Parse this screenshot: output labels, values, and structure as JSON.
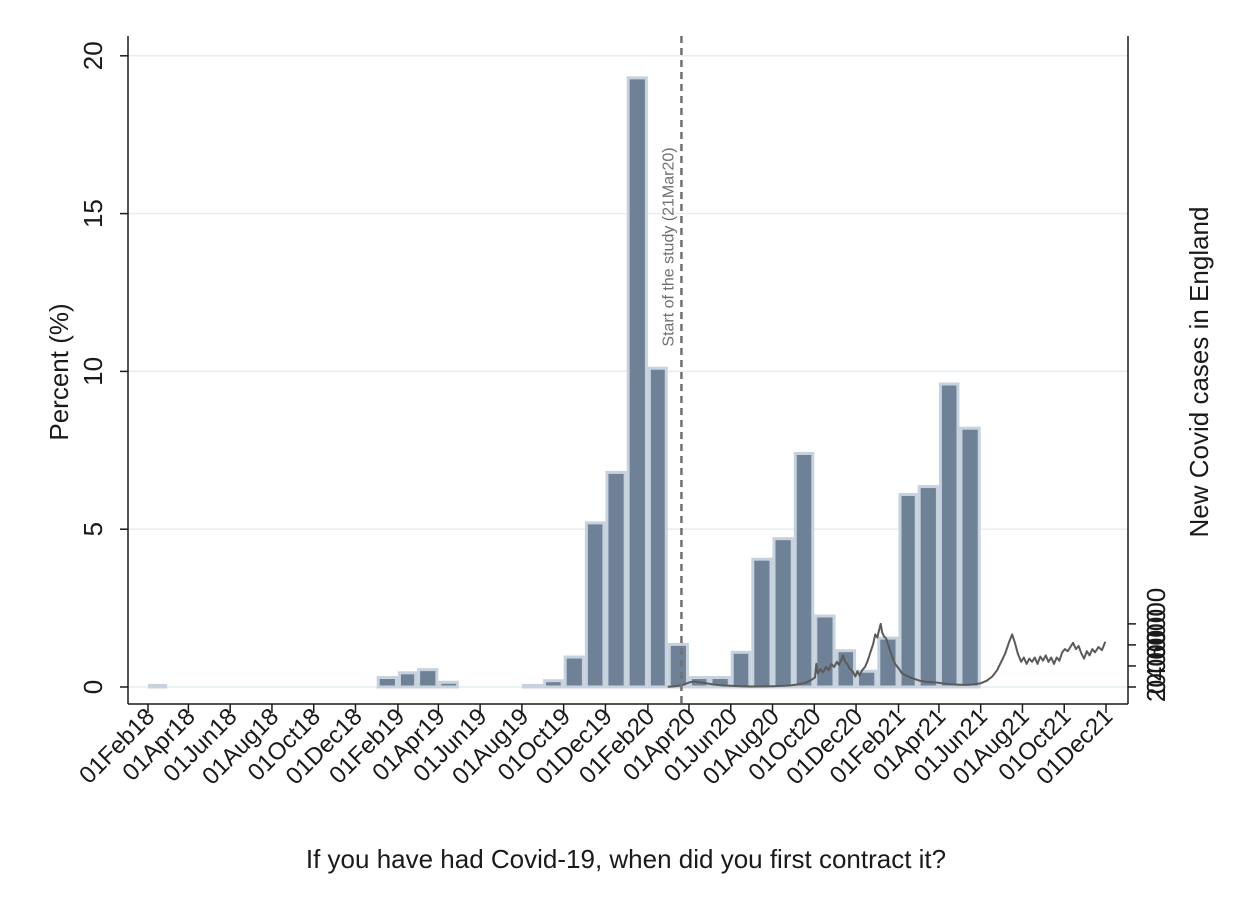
{
  "chart_data": {
    "type": "bar",
    "xlabel": "If you have had Covid-19, when did you first contract it?",
    "ylabel": "Percent (%)",
    "y2label": "New Covid cases in England",
    "ylim": [
      0,
      20.5
    ],
    "y2lim": [
      0,
      61500
    ],
    "yticks": [
      "0",
      "5",
      "10",
      "15",
      "20"
    ],
    "y2ticks": [
      "0",
      "20000",
      "40000",
      "60000"
    ],
    "xtick_labels": [
      "01Feb18",
      "01Apr18",
      "01Jun18",
      "01Aug18",
      "01Oct18",
      "01Dec18",
      "01Feb19",
      "01Apr19",
      "01Jun19",
      "01Aug19",
      "01Oct19",
      "01Dec19",
      "01Feb20",
      "01Apr20",
      "01Jun20",
      "01Aug20",
      "01Oct20",
      "01Dec20",
      "01Feb21",
      "01Apr21",
      "01Jun21",
      "01Aug21",
      "01Oct21",
      "01Dec21"
    ],
    "grid": true,
    "bars": {
      "months": [
        "2018-02",
        "2018-03",
        "2018-04",
        "2018-05",
        "2018-06",
        "2018-07",
        "2018-08",
        "2018-09",
        "2018-10",
        "2018-11",
        "2018-12",
        "2019-01",
        "2019-02",
        "2019-03",
        "2019-04",
        "2019-05",
        "2019-06",
        "2019-07",
        "2019-08",
        "2019-09",
        "2019-10",
        "2019-11",
        "2019-12",
        "2020-01",
        "2020-02",
        "2020-03",
        "2020-04",
        "2020-05",
        "2020-06",
        "2020-07",
        "2020-08",
        "2020-09",
        "2020-10",
        "2020-11",
        "2020-12",
        "2021-01",
        "2021-02",
        "2021-03",
        "2021-04",
        "2021-05",
        "2021-06",
        "2021-07",
        "2021-08",
        "2021-09",
        "2021-10",
        "2021-11"
      ],
      "values": [
        0.05,
        0,
        0,
        0,
        0,
        0,
        0,
        0,
        0,
        0,
        0,
        0.3,
        0.45,
        0.55,
        0.15,
        0,
        0,
        0,
        0.05,
        0.2,
        0.95,
        5.2,
        6.8,
        19.3,
        10.1,
        1.35,
        0.3,
        0.3,
        1.1,
        4.05,
        4.7,
        7.4,
        2.25,
        1.15,
        0.5,
        1.55,
        6.1,
        6.35,
        9.6,
        8.2,
        0,
        0,
        0,
        0,
        0,
        0
      ]
    },
    "series": [
      {
        "type": "line",
        "axis": "right",
        "points": [
          [
            "2020-03-01",
            200
          ],
          [
            "2020-03-10",
            600
          ],
          [
            "2020-03-21",
            1500
          ],
          [
            "2020-03-27",
            3000
          ],
          [
            "2020-04-02",
            4500
          ],
          [
            "2020-04-08",
            5200
          ],
          [
            "2020-04-14",
            4800
          ],
          [
            "2020-04-20",
            4200
          ],
          [
            "2020-04-26",
            3600
          ],
          [
            "2020-05-03",
            2800
          ],
          [
            "2020-05-12",
            2000
          ],
          [
            "2020-05-22",
            1400
          ],
          [
            "2020-06-01",
            1100
          ],
          [
            "2020-06-15",
            800
          ],
          [
            "2020-07-01",
            500
          ],
          [
            "2020-07-15",
            600
          ],
          [
            "2020-08-01",
            800
          ],
          [
            "2020-08-15",
            1000
          ],
          [
            "2020-08-28",
            1500
          ],
          [
            "2020-09-08",
            2500
          ],
          [
            "2020-09-18",
            4000
          ],
          [
            "2020-09-26",
            6500
          ],
          [
            "2020-10-02",
            9000
          ],
          [
            "2020-10-04",
            22000
          ],
          [
            "2020-10-06",
            13000
          ],
          [
            "2020-10-10",
            17000
          ],
          [
            "2020-10-14",
            14000
          ],
          [
            "2020-10-18",
            19000
          ],
          [
            "2020-10-22",
            16000
          ],
          [
            "2020-10-26",
            22000
          ],
          [
            "2020-10-30",
            19000
          ],
          [
            "2020-11-03",
            24000
          ],
          [
            "2020-11-06",
            21000
          ],
          [
            "2020-11-09",
            25000
          ],
          [
            "2020-11-12",
            30000
          ],
          [
            "2020-11-15",
            24000
          ],
          [
            "2020-11-18",
            22000
          ],
          [
            "2020-11-22",
            17000
          ],
          [
            "2020-11-26",
            15000
          ],
          [
            "2020-11-30",
            10000
          ],
          [
            "2020-12-03",
            15000
          ],
          [
            "2020-12-06",
            11000
          ],
          [
            "2020-12-10",
            16000
          ],
          [
            "2020-12-14",
            19000
          ],
          [
            "2020-12-18",
            25000
          ],
          [
            "2020-12-22",
            33000
          ],
          [
            "2020-12-26",
            41000
          ],
          [
            "2020-12-29",
            50000
          ],
          [
            "2021-01-01",
            47000
          ],
          [
            "2021-01-04",
            55000
          ],
          [
            "2021-01-06",
            60000
          ],
          [
            "2021-01-08",
            52000
          ],
          [
            "2021-01-11",
            48000
          ],
          [
            "2021-01-14",
            46000
          ],
          [
            "2021-01-18",
            38000
          ],
          [
            "2021-01-22",
            30000
          ],
          [
            "2021-01-27",
            22000
          ],
          [
            "2021-02-01",
            18000
          ],
          [
            "2021-02-06",
            13000
          ],
          [
            "2021-02-12",
            11000
          ],
          [
            "2021-02-18",
            9000
          ],
          [
            "2021-02-25",
            7500
          ],
          [
            "2021-03-04",
            6000
          ],
          [
            "2021-03-12",
            5000
          ],
          [
            "2021-03-22",
            4500
          ],
          [
            "2021-04-01",
            4000
          ],
          [
            "2021-04-10",
            3000
          ],
          [
            "2021-04-20",
            2500
          ],
          [
            "2021-05-01",
            2200
          ],
          [
            "2021-05-12",
            2000
          ],
          [
            "2021-05-22",
            2500
          ],
          [
            "2021-06-01",
            3500
          ],
          [
            "2021-06-10",
            6000
          ],
          [
            "2021-06-18",
            10000
          ],
          [
            "2021-06-25",
            16000
          ],
          [
            "2021-07-01",
            24000
          ],
          [
            "2021-07-07",
            32000
          ],
          [
            "2021-07-12",
            42000
          ],
          [
            "2021-07-17",
            50000
          ],
          [
            "2021-07-21",
            42000
          ],
          [
            "2021-07-25",
            32000
          ],
          [
            "2021-07-30",
            24000
          ],
          [
            "2021-08-03",
            28000
          ],
          [
            "2021-08-07",
            22000
          ],
          [
            "2021-08-11",
            27000
          ],
          [
            "2021-08-15",
            24000
          ],
          [
            "2021-08-19",
            28000
          ],
          [
            "2021-08-23",
            22000
          ],
          [
            "2021-08-27",
            29000
          ],
          [
            "2021-08-31",
            25000
          ],
          [
            "2021-09-04",
            30000
          ],
          [
            "2021-09-08",
            24000
          ],
          [
            "2021-09-12",
            28000
          ],
          [
            "2021-09-16",
            22000
          ],
          [
            "2021-09-20",
            28000
          ],
          [
            "2021-09-24",
            25000
          ],
          [
            "2021-09-28",
            33000
          ],
          [
            "2021-10-02",
            36000
          ],
          [
            "2021-10-06",
            34000
          ],
          [
            "2021-10-10",
            38000
          ],
          [
            "2021-10-14",
            42000
          ],
          [
            "2021-10-18",
            36000
          ],
          [
            "2021-10-22",
            39000
          ],
          [
            "2021-10-26",
            32000
          ],
          [
            "2021-10-30",
            27000
          ],
          [
            "2021-11-03",
            34000
          ],
          [
            "2021-11-07",
            30000
          ],
          [
            "2021-11-11",
            36000
          ],
          [
            "2021-11-15",
            33000
          ],
          [
            "2021-11-20",
            38000
          ],
          [
            "2021-11-25",
            35000
          ],
          [
            "2021-11-30",
            43000
          ]
        ]
      }
    ],
    "annotations": [
      {
        "date": "2020-03-21",
        "text": "Start of the study (21Mar20)",
        "style": "dashed vertical line"
      }
    ]
  },
  "colors": {
    "bar_fill": "#6f8196",
    "bar_outline": "#c7d2df",
    "line": "#5a5a5a",
    "grid": "#e3eeee",
    "axis": "#1a1a1a",
    "annotation": "#707070"
  }
}
